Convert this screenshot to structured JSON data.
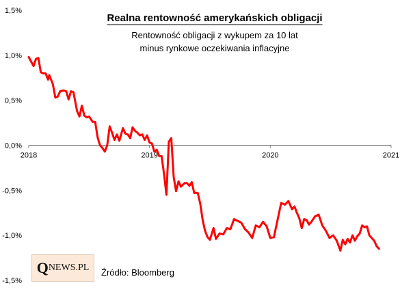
{
  "chart_data": {
    "type": "line",
    "title": "Realna rentowność amerykańskich obligacji",
    "subtitle": [
      "Rentowność obligacji z wykupem za 10 lat",
      "minus rynkowe oczekiwania inflacyjne"
    ],
    "xlabel": "",
    "ylabel": "",
    "xlim": [
      2018,
      2021
    ],
    "ylim": [
      -1.5,
      1.5
    ],
    "yticks": [
      1.5,
      1.0,
      0.5,
      0.0,
      -0.5,
      -1.0,
      -1.5
    ],
    "ytick_labels": [
      "1,5%",
      "1,0%",
      "0,5%",
      "0,0%",
      "-0,5%",
      "-1,0%",
      "-1,5%"
    ],
    "xticks": [
      2018,
      2019,
      2020,
      2021
    ],
    "xtick_labels": [
      "2018",
      "2019",
      "2020",
      "2021"
    ],
    "grid": false,
    "legend": "none",
    "series": [
      {
        "color": "#ff0000",
        "x": [
          2018.0,
          2018.02,
          2018.04,
          2018.06,
          2018.08,
          2018.1,
          2018.12,
          2018.14,
          2018.16,
          2018.17,
          2018.2,
          2018.22,
          2018.24,
          2018.26,
          2018.29,
          2018.31,
          2018.33,
          2018.35,
          2018.37,
          2018.4,
          2018.42,
          2018.44,
          2018.46,
          2018.48,
          2018.5,
          2018.53,
          2018.55,
          2018.57,
          2018.59,
          2018.61,
          2018.63,
          2018.65,
          2018.67,
          2018.69,
          2018.71,
          2018.73,
          2018.75,
          2018.78,
          2018.8,
          2018.82,
          2018.84,
          2018.86,
          2018.88,
          2018.9,
          2018.92,
          2018.94,
          2018.96,
          2018.98,
          2019.0,
          2019.02,
          2019.04,
          2019.06,
          2019.08,
          2019.1,
          2019.12,
          2019.14,
          2019.16,
          2019.18,
          2019.2,
          2019.22,
          2019.24,
          2019.26,
          2019.29,
          2019.31,
          2019.33,
          2019.35,
          2019.37,
          2019.4,
          2019.42,
          2019.44,
          2019.46,
          2019.48,
          2019.5,
          2019.53,
          2019.55,
          2019.58,
          2019.61,
          2019.64,
          2019.67,
          2019.7,
          2019.73,
          2019.76,
          2019.79,
          2019.82,
          2019.85,
          2019.88,
          2019.91,
          2019.94,
          2019.97,
          2020.0,
          2020.03,
          2020.06,
          2020.09,
          2020.12,
          2020.15,
          2020.18,
          2020.2,
          2020.22,
          2020.24,
          2020.26,
          2020.28,
          2020.3,
          2020.32,
          2020.34,
          2020.37,
          2020.4,
          2020.43,
          2020.46,
          2020.49,
          2020.52,
          2020.55,
          2020.58,
          2020.6,
          2020.62,
          2020.64,
          2020.66,
          2020.68,
          2020.7,
          2020.72,
          2020.74,
          2020.76,
          2020.78,
          2020.8,
          2020.82,
          2020.84,
          2020.86,
          2020.88,
          2020.9
        ],
        "y": [
          0.98,
          0.93,
          0.88,
          0.96,
          0.97,
          0.81,
          0.8,
          0.8,
          0.73,
          0.78,
          0.68,
          0.53,
          0.54,
          0.6,
          0.61,
          0.6,
          0.51,
          0.6,
          0.59,
          0.38,
          0.32,
          0.44,
          0.33,
          0.31,
          0.32,
          0.26,
          0.26,
          0.09,
          0.0,
          -0.03,
          -0.07,
          0.0,
          0.21,
          0.14,
          0.06,
          0.12,
          0.05,
          0.19,
          0.13,
          0.12,
          0.08,
          0.2,
          0.16,
          0.14,
          0.11,
          0.12,
          0.06,
          0.11,
          0.03,
          0.02,
          -0.07,
          -0.05,
          -0.12,
          -0.12,
          -0.32,
          -0.55,
          0.04,
          0.08,
          -0.35,
          -0.51,
          -0.4,
          -0.46,
          -0.42,
          -0.42,
          -0.45,
          -0.41,
          -0.53,
          -0.53,
          -0.65,
          -0.83,
          -0.95,
          -1.02,
          -1.05,
          -0.92,
          -1.04,
          -0.98,
          -0.99,
          -0.92,
          -0.93,
          -0.82,
          -0.84,
          -0.86,
          -0.93,
          -0.97,
          -1.03,
          -0.89,
          -0.91,
          -0.85,
          -0.9,
          -1.03,
          -1.02,
          -0.83,
          -0.64,
          -0.66,
          -0.62,
          -0.71,
          -0.68,
          -0.75,
          -0.81,
          -0.92,
          -0.82,
          -0.83,
          -0.88,
          -0.85,
          -0.79,
          -0.77,
          -0.89,
          -0.95,
          -1.03,
          -1.0,
          -1.06,
          -1.17,
          -1.05,
          -1.1,
          -1.04,
          -1.08,
          -1.0,
          -1.06,
          -1.01,
          -0.98,
          -0.89,
          -0.91,
          -0.9,
          -1.0,
          -1.03,
          -1.06,
          -1.12,
          -1.15
        ]
      }
    ]
  },
  "source_text": "Źródło: Bloomberg",
  "logo": {
    "q": "Q",
    "rest": "NEWS.PL"
  }
}
